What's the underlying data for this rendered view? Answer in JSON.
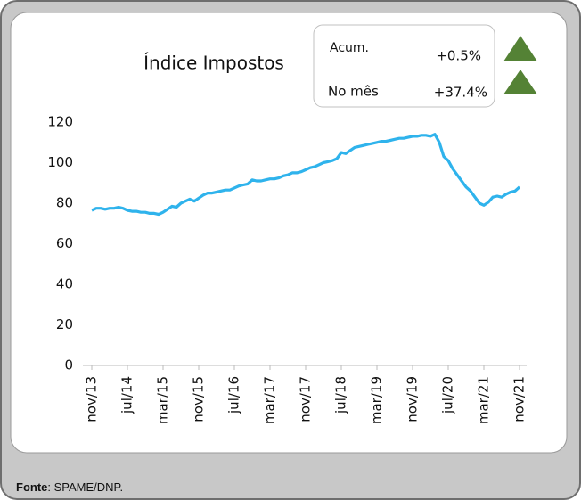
{
  "chart_data": {
    "type": "line",
    "title": "Índice Impostos",
    "annotations": [
      {
        "label": "Acum.",
        "value": "+0.5%"
      },
      {
        "label": "No mês",
        "value": "+37.4%"
      }
    ],
    "categories": [
      "nov/13",
      null,
      null,
      null,
      null,
      null,
      null,
      null,
      "jul/14",
      null,
      null,
      null,
      null,
      null,
      null,
      null,
      "mar/15",
      null,
      null,
      null,
      null,
      null,
      null,
      null,
      "nov/15",
      null,
      null,
      null,
      null,
      null,
      null,
      null,
      "jul/16",
      null,
      null,
      null,
      null,
      null,
      null,
      null,
      "mar/17",
      null,
      null,
      null,
      null,
      null,
      null,
      null,
      "nov/17",
      null,
      null,
      null,
      null,
      null,
      null,
      null,
      "jul/18",
      null,
      null,
      null,
      null,
      null,
      null,
      null,
      "mar/19",
      null,
      null,
      null,
      null,
      null,
      null,
      null,
      "nov/19",
      null,
      null,
      null,
      null,
      null,
      null,
      null,
      "jul/20",
      null,
      null,
      null,
      null,
      null,
      null,
      null,
      "mar/21",
      null,
      null,
      null,
      null,
      null,
      null,
      null,
      "nov/21"
    ],
    "values": [
      76.5,
      77.5,
      77.5,
      77,
      77.5,
      77.5,
      78,
      77.5,
      76.5,
      76,
      76,
      75.5,
      75.5,
      75,
      75,
      74.5,
      75.5,
      77,
      78.5,
      78,
      80,
      81,
      82,
      81,
      82.5,
      84,
      85,
      85,
      85.5,
      86,
      86.5,
      86.5,
      87.5,
      88.5,
      89,
      89.5,
      91.5,
      91,
      91,
      91.5,
      92,
      92,
      92.5,
      93.5,
      94,
      95,
      95,
      95.5,
      96.5,
      97.5,
      98,
      99,
      100,
      100.5,
      101,
      102,
      105,
      104.5,
      106,
      107.5,
      108,
      108.5,
      109,
      109.5,
      110,
      110.5,
      110.5,
      111,
      111.5,
      112,
      112,
      112.5,
      113,
      113,
      113.5,
      113.5,
      113,
      114,
      110,
      103,
      101,
      97,
      94,
      91,
      88,
      86,
      83,
      80,
      79,
      80.5,
      83,
      83.5,
      83,
      84.5,
      85.5,
      86,
      88
    ],
    "color": "#2fb3ec",
    "ylim": [
      0,
      120
    ],
    "yticks": [
      0,
      20,
      40,
      60,
      80,
      100,
      120
    ],
    "grid": false
  },
  "footer": {
    "label": "Fonte",
    "text": ": SPAME/DNP."
  }
}
